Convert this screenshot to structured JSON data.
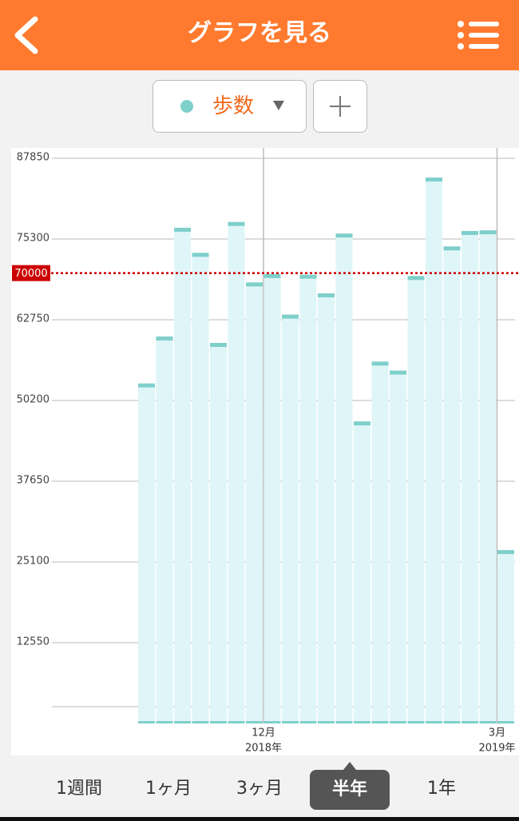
{
  "header": {
    "title": "グラフを見る"
  },
  "selector": {
    "label": "歩数"
  },
  "tabs": [
    "1週間",
    "1ヶ月",
    "3ヶ月",
    "半年",
    "1年"
  ],
  "selected_tab": 3,
  "chart_data": {
    "type": "bar",
    "categories": [
      null,
      null,
      null,
      null,
      null,
      null,
      null,
      null,
      null,
      null,
      null,
      null,
      "12月",
      null,
      null,
      null,
      null,
      null,
      null,
      null,
      null,
      null,
      null,
      null,
      null,
      "3月"
    ],
    "category_years": [
      null,
      null,
      null,
      null,
      null,
      null,
      null,
      null,
      null,
      null,
      null,
      null,
      "2018年",
      null,
      null,
      null,
      null,
      null,
      null,
      null,
      null,
      null,
      null,
      null,
      null,
      "2019年"
    ],
    "values": [
      null,
      null,
      null,
      null,
      null,
      52600,
      59900,
      76800,
      72900,
      58900,
      77700,
      68300,
      69600,
      63300,
      69500,
      66600,
      75900,
      46700,
      56000,
      54600,
      69300,
      84600,
      73900,
      76300,
      76400,
      26700
    ],
    "color": "#dff6f8",
    "cap_color": "#7fcfcb",
    "ylim": [
      0,
      89460
    ],
    "yticks": [
      12550,
      25100,
      37650,
      50200,
      62750,
      75300,
      87850
    ],
    "grid": true,
    "target": 70000,
    "target_color": "#cc0000"
  }
}
